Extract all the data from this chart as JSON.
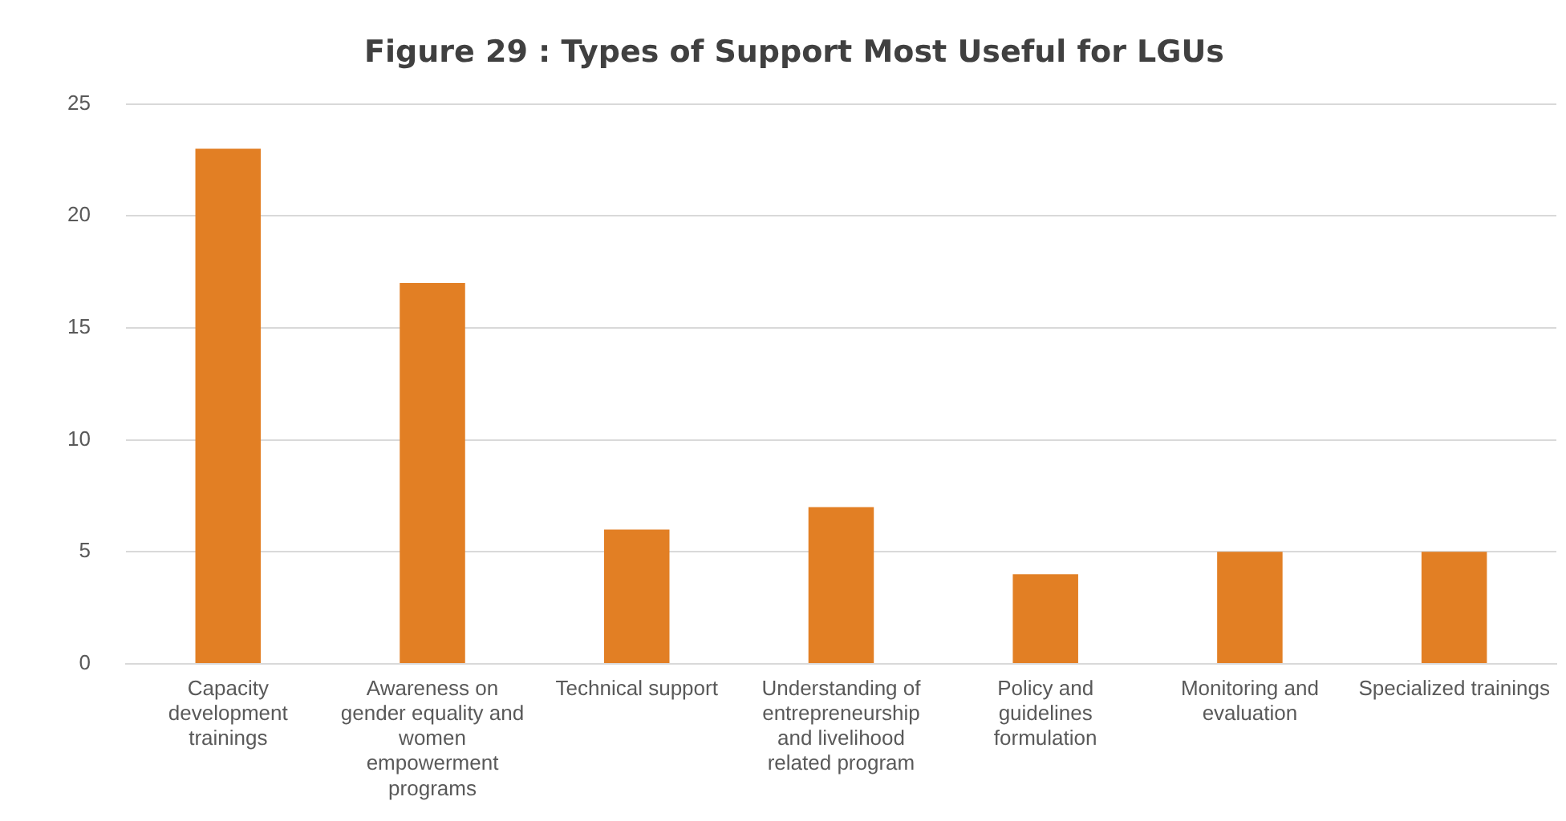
{
  "chart_data": {
    "type": "bar",
    "title": "Figure 29 : Types of Support Most Useful for LGUs",
    "categories": [
      "Capacity development trainings",
      "Awareness on gender equality and women empowerment programs",
      "Technical support",
      "Understanding of entrepreneurship and livelihood related program",
      "Policy and guidelines formulation",
      "Monitoring and evaluation",
      "Specialized trainings"
    ],
    "values": [
      23,
      17,
      6,
      7,
      4,
      5,
      5
    ],
    "color": "#e27f24",
    "ylim": [
      0,
      25
    ],
    "yticks": [
      0,
      5,
      10,
      15,
      20,
      25
    ],
    "grid": "y"
  }
}
